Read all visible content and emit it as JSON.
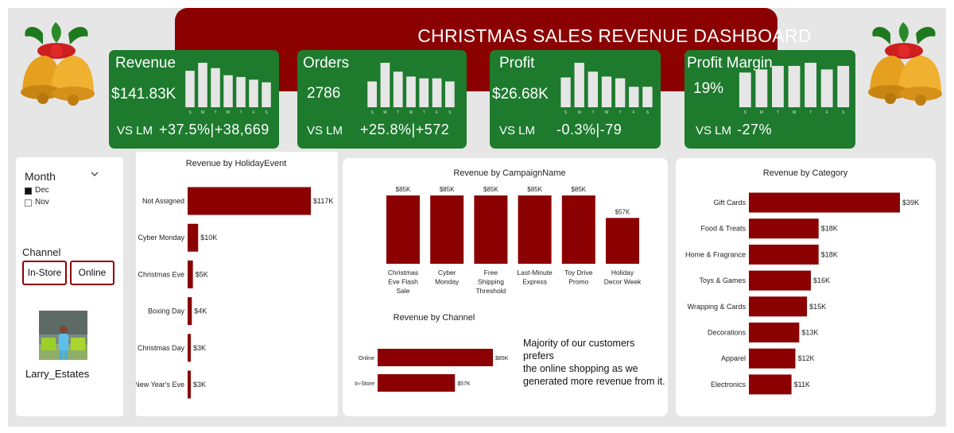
{
  "title": "CHRISTMAS SALES REVENUE DASHBOARD",
  "colors": {
    "accent": "#8b0000",
    "kpi_green": "#1e7b2e",
    "mini_bar": "#e6e6e6",
    "background": "#e6e6e6"
  },
  "kpis": [
    {
      "title": "Revenue",
      "value": "$141.83K",
      "vs_label": "VS LM",
      "delta": "+37.5%|+38,669",
      "weekdays": [
        "S",
        "M",
        "T",
        "W",
        "T",
        "F",
        "S"
      ],
      "mini_values": [
        82,
        100,
        88,
        72,
        68,
        62,
        56
      ]
    },
    {
      "title": "Orders",
      "value": "2786",
      "vs_label": "VS LM",
      "delta": "+25.8%|+572",
      "weekdays": [
        "S",
        "M",
        "T",
        "W",
        "T",
        "F",
        "S"
      ],
      "mini_values": [
        58,
        100,
        80,
        69,
        65,
        65,
        58
      ]
    },
    {
      "title": "Profit",
      "value": "$26.68K",
      "vs_label": "VS LM",
      "delta": "-0.3%|-79",
      "weekdays": [
        "S",
        "M",
        "T",
        "W",
        "T",
        "F",
        "S"
      ],
      "mini_values": [
        67,
        100,
        80,
        69,
        65,
        46,
        46
      ]
    },
    {
      "title": "Profit Margin",
      "value": "19%",
      "vs_label": "VS LM",
      "delta": "-27%",
      "weekdays": [
        "S",
        "M",
        "T",
        "W",
        "T",
        "F",
        "S"
      ],
      "mini_values": [
        78,
        85,
        93,
        93,
        100,
        85,
        93
      ]
    }
  ],
  "slicer": {
    "month_label": "Month",
    "month_options": [
      {
        "label": "Dec",
        "checked": true
      },
      {
        "label": "Nov",
        "checked": false
      }
    ],
    "channel_label": "Channel",
    "channel_buttons": [
      "In-Store",
      "Online"
    ],
    "user_name": "Larry_Estates"
  },
  "chart_data": [
    {
      "type": "bar",
      "orientation": "horizontal",
      "title": "Revenue by HolidayEvent",
      "categories": [
        "Not Assigned",
        "Cyber Monday",
        "Christmas Eve",
        "Boxing Day",
        "Christmas Day",
        "New Year's Eve"
      ],
      "values": [
        117,
        10,
        5,
        4,
        3,
        3
      ],
      "labels": [
        "$117K",
        "$10K",
        "$5K",
        "$4K",
        "$3K",
        "$3K"
      ],
      "unit": "$K",
      "xlim": [
        0,
        117
      ]
    },
    {
      "type": "bar",
      "orientation": "vertical",
      "title": "Revenue by CampaignName",
      "categories": [
        [
          "Christmas",
          "Eve Flash",
          "Sale"
        ],
        [
          "Cyber",
          "Monday"
        ],
        [
          "Free",
          "Shipping",
          "Threshold"
        ],
        [
          "Last-Minute",
          "Express"
        ],
        [
          "Toy Drive",
          "Promo"
        ],
        [
          "Holiday",
          "Decor Week"
        ]
      ],
      "values": [
        85,
        85,
        85,
        85,
        85,
        57
      ],
      "labels": [
        "$85K",
        "$85K",
        "$85K",
        "$85K",
        "$85K",
        "$57K"
      ],
      "unit": "$K",
      "ylim": [
        0,
        85
      ]
    },
    {
      "type": "bar",
      "orientation": "horizontal",
      "title": "Revenue by Channel",
      "categories": [
        "Online",
        "In-Store"
      ],
      "values": [
        85,
        57
      ],
      "labels": [
        "$85K",
        "$57K"
      ],
      "unit": "$K",
      "xlim": [
        0,
        85
      ]
    },
    {
      "type": "bar",
      "orientation": "horizontal",
      "title": "Revenue by Category",
      "categories": [
        "Gift Cards",
        "Food & Treats",
        "Home & Fragrance",
        "Toys & Games",
        "Wrapping & Cards",
        "Decorations",
        "Apparel",
        "Electronics"
      ],
      "values": [
        39,
        18,
        18,
        16,
        15,
        13,
        12,
        11
      ],
      "labels": [
        "$39K",
        "$18K",
        "$18K",
        "$16K",
        "$15K",
        "$13K",
        "$12K",
        "$11K"
      ],
      "unit": "$K",
      "xlim": [
        0,
        39
      ]
    }
  ],
  "insight_text": [
    "Majority of our customers prefers",
    "the online shopping as we",
    "generated more revenue from it."
  ]
}
